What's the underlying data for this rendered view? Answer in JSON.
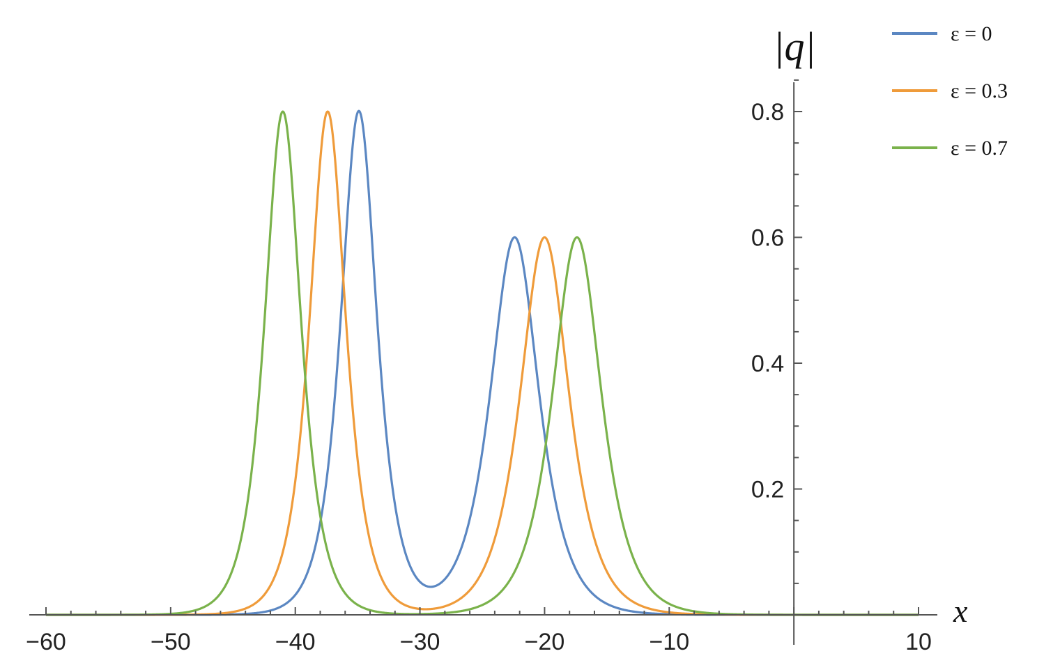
{
  "chart_data": {
    "type": "line",
    "xlabel": "x",
    "ylabel": "|q|",
    "xlim": [
      -61,
      10
    ],
    "ylim": [
      0,
      0.85
    ],
    "x_ticks": [
      -60,
      -50,
      -40,
      -30,
      -20,
      -10,
      10
    ],
    "x_tick_labels": [
      "−60",
      "−50",
      "−40",
      "−30",
      "−20",
      "−10",
      "10"
    ],
    "y_ticks": [
      0.2,
      0.4,
      0.6,
      0.8
    ],
    "y_tick_labels": [
      "0.2",
      "0.4",
      "0.6",
      "0.8"
    ],
    "grid": false,
    "legend_position": "top-right",
    "series": [
      {
        "name": "ε = 0",
        "color": "#5b87c2",
        "peaks": [
          {
            "center": -34.9,
            "height": 0.8,
            "width": 1.3
          },
          {
            "center": -22.4,
            "height": 0.6,
            "width": 1.75
          }
        ]
      },
      {
        "name": "ε = 0.3",
        "color": "#ef9b3a",
        "peaks": [
          {
            "center": -37.4,
            "height": 0.8,
            "width": 1.3
          },
          {
            "center": -20.0,
            "height": 0.6,
            "width": 1.75
          }
        ]
      },
      {
        "name": "ε = 0.7",
        "color": "#7ab24b",
        "peaks": [
          {
            "center": -41.0,
            "height": 0.8,
            "width": 1.3
          },
          {
            "center": -17.4,
            "height": 0.6,
            "width": 1.75
          }
        ]
      }
    ]
  }
}
